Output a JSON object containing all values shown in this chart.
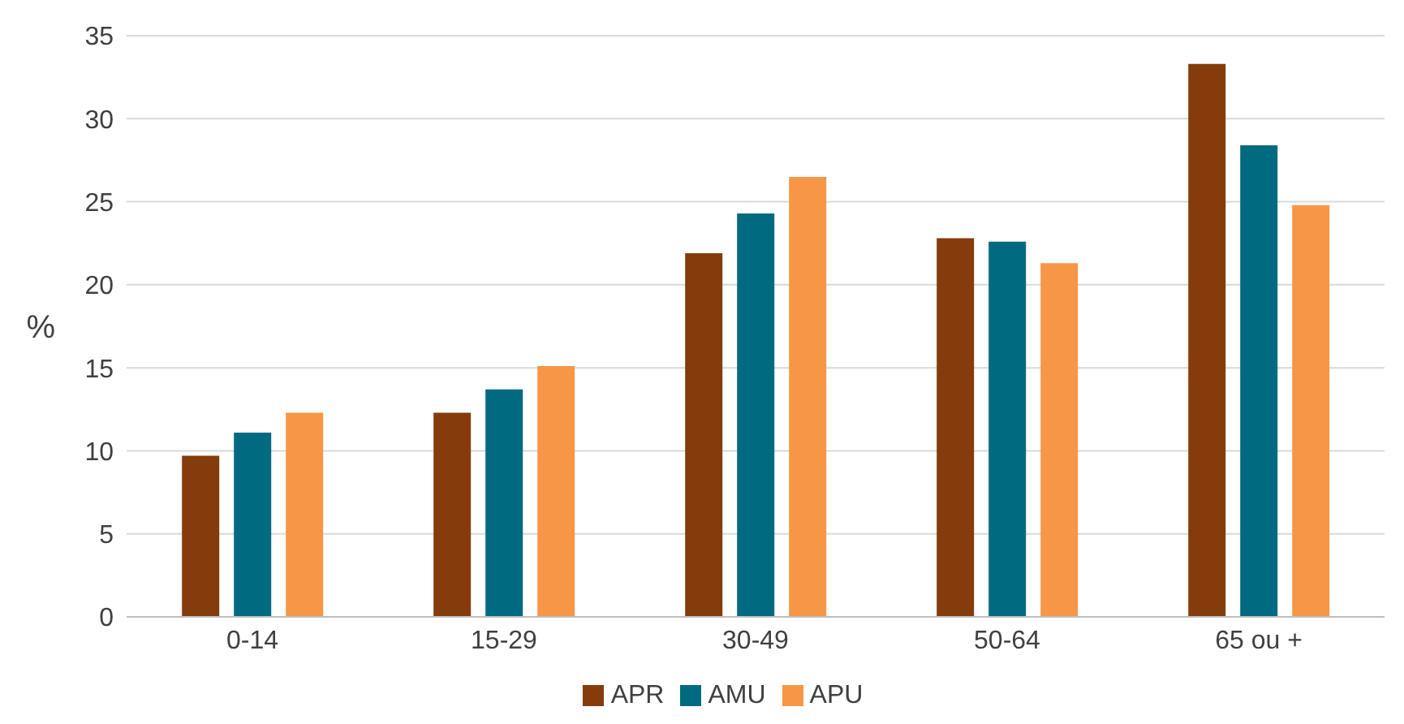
{
  "chart_data": {
    "type": "bar",
    "ylabel": "%",
    "categories": [
      "0-14",
      "15-29",
      "30-49",
      "50-64",
      "65 ou +"
    ],
    "series": [
      {
        "name": "APR",
        "color": "#843c0c",
        "values": [
          9.7,
          12.3,
          21.9,
          22.8,
          33.3
        ]
      },
      {
        "name": "AMU",
        "color": "#006a80",
        "values": [
          11.1,
          13.7,
          24.3,
          22.6,
          28.4
        ]
      },
      {
        "name": "APU",
        "color": "#f79646",
        "values": [
          12.3,
          15.1,
          26.5,
          21.3,
          24.8
        ]
      }
    ],
    "ylim": [
      0,
      35
    ],
    "yticks": [
      0,
      5,
      10,
      15,
      20,
      25,
      30,
      35
    ],
    "grid": "y",
    "legend": "bottom"
  }
}
